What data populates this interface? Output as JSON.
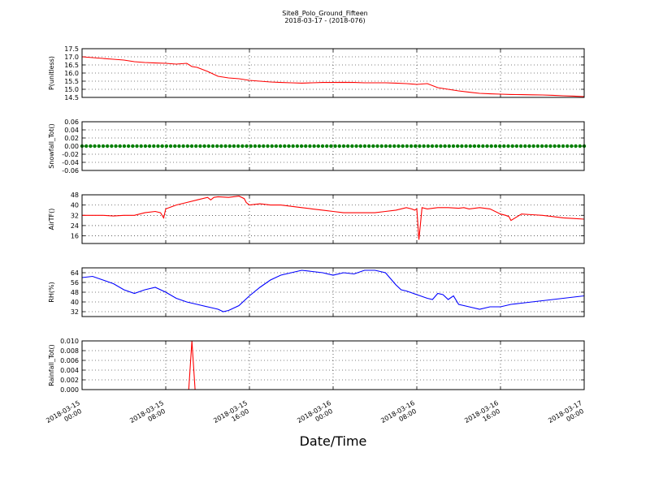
{
  "figure": {
    "title": "Site8_Polo_Ground_Fifteen",
    "subtitle": "2018-03-17 - (2018-076)",
    "xlabel": "Date/Time",
    "x_ticks": [
      {
        "t": 0,
        "line1": "2018-03-15",
        "line2": "00:00"
      },
      {
        "t": 8,
        "line1": "2018-03-15",
        "line2": "08:00"
      },
      {
        "t": 16,
        "line1": "2018-03-15",
        "line2": "16:00"
      },
      {
        "t": 24,
        "line1": "2018-03-16",
        "line2": "00:00"
      },
      {
        "t": 32,
        "line1": "2018-03-16",
        "line2": "08:00"
      },
      {
        "t": 40,
        "line1": "2018-03-16",
        "line2": "16:00"
      },
      {
        "t": 48,
        "line1": "2018-03-17",
        "line2": "00:00"
      }
    ]
  },
  "chart_data": [
    {
      "type": "line",
      "ylabel": "P(unitless)",
      "ylim": [
        14.5,
        17.5
      ],
      "yticks": [
        "14.5",
        "15.0",
        "15.5",
        "16.0",
        "16.5",
        "17.0",
        "17.5"
      ],
      "color": "#ff0000",
      "grid": true,
      "x": [
        0,
        1,
        2,
        3,
        4,
        5,
        6,
        7,
        8,
        9,
        10,
        10.5,
        11,
        12,
        13,
        14,
        15,
        16,
        17,
        18,
        19,
        20,
        21,
        22,
        23,
        24,
        25,
        26,
        27,
        28,
        29,
        30,
        31,
        32,
        33,
        34,
        35,
        36,
        37,
        38,
        39,
        40,
        41,
        42,
        43,
        44,
        45,
        46,
        47,
        48
      ],
      "y": [
        17.0,
        16.95,
        16.9,
        16.85,
        16.8,
        16.7,
        16.65,
        16.62,
        16.6,
        16.55,
        16.6,
        16.4,
        16.35,
        16.1,
        15.8,
        15.7,
        15.65,
        15.55,
        15.5,
        15.45,
        15.42,
        15.4,
        15.38,
        15.4,
        15.42,
        15.42,
        15.43,
        15.42,
        15.4,
        15.4,
        15.4,
        15.38,
        15.35,
        15.3,
        15.35,
        15.1,
        15.0,
        14.9,
        14.82,
        14.75,
        14.72,
        14.7,
        14.68,
        14.67,
        14.66,
        14.65,
        14.63,
        14.6,
        14.58,
        14.55
      ]
    },
    {
      "type": "scatter",
      "ylabel": "Snowfall_Tot()",
      "ylim": [
        -0.06,
        0.06
      ],
      "yticks": [
        "-0.06",
        "-0.04",
        "-0.02",
        "0.00",
        "0.02",
        "0.04",
        "0.06"
      ],
      "color": "#008000",
      "grid": true,
      "x_range": [
        0,
        48
      ],
      "point_count": 120,
      "value": 0.0
    },
    {
      "type": "line",
      "ylabel": "AirTF()",
      "ylim": [
        10,
        48
      ],
      "yticks": [
        "16",
        "24",
        "32",
        "40",
        "48"
      ],
      "color": "#ff0000",
      "grid": true,
      "x": [
        0,
        1,
        2,
        3,
        4,
        5,
        6,
        7,
        7.5,
        7.8,
        8,
        9,
        10,
        11,
        12,
        12.3,
        12.6,
        13,
        14,
        15,
        15.5,
        15.7,
        16,
        17,
        18,
        19,
        20,
        21,
        22,
        23,
        24,
        25,
        26,
        27,
        28,
        29,
        30,
        31,
        31.5,
        31.8,
        32,
        32.2,
        32.5,
        33,
        34,
        35,
        36,
        36.5,
        37,
        38,
        39,
        40,
        40.5,
        40.8,
        41,
        42,
        43,
        44,
        45,
        46,
        47,
        48
      ],
      "y": [
        32,
        32,
        32,
        31.5,
        32,
        32,
        34,
        35,
        34,
        30,
        37,
        40,
        42,
        44,
        46,
        44,
        46,
        46.5,
        46,
        47,
        45,
        42,
        40,
        41,
        40,
        40,
        39,
        38,
        37,
        36,
        35,
        34,
        34,
        34,
        34,
        35,
        36,
        38,
        37,
        36,
        37,
        13,
        38,
        37,
        38,
        38,
        37.5,
        38,
        37,
        38,
        37,
        33,
        32,
        31,
        28,
        33,
        32.5,
        32,
        31,
        30,
        29.5,
        29
      ]
    },
    {
      "type": "line",
      "ylabel": "RH(%)",
      "ylim": [
        28,
        68
      ],
      "yticks": [
        "32",
        "40",
        "48",
        "56",
        "64"
      ],
      "color": "#0000ff",
      "grid": true,
      "x": [
        0,
        1,
        2,
        3,
        4,
        5,
        6,
        7,
        8,
        9,
        10,
        11,
        12,
        13,
        13.5,
        14,
        15,
        16,
        17,
        18,
        19,
        20,
        21,
        22,
        23,
        24,
        25,
        26,
        27,
        28,
        29,
        30,
        30.5,
        31,
        32,
        33,
        33.5,
        34,
        34.5,
        35,
        35.5,
        36,
        37,
        38,
        39,
        40,
        41,
        42,
        43,
        44,
        45,
        46,
        47,
        48
      ],
      "y": [
        60,
        61,
        58,
        55,
        50,
        47,
        50,
        52,
        48,
        43,
        40,
        38,
        36,
        34,
        32,
        33,
        37,
        45,
        52,
        58,
        62,
        64,
        66,
        65,
        64,
        62,
        64,
        63,
        66,
        66,
        64,
        54,
        50,
        49,
        46,
        43,
        42,
        47,
        46,
        42,
        45,
        38,
        36,
        34,
        36,
        36,
        38,
        39,
        40,
        41,
        42,
        43,
        44,
        45
      ]
    },
    {
      "type": "line",
      "ylabel": "Rainfall_Tot()",
      "ylim": [
        0.0,
        0.01
      ],
      "yticks": [
        "0.000",
        "0.002",
        "0.004",
        "0.006",
        "0.008",
        "0.010"
      ],
      "color": "#ff0000",
      "grid": true,
      "x": [
        0,
        10.2,
        10.5,
        10.8,
        48
      ],
      "y": [
        0,
        0,
        0.01,
        0,
        0
      ]
    }
  ]
}
